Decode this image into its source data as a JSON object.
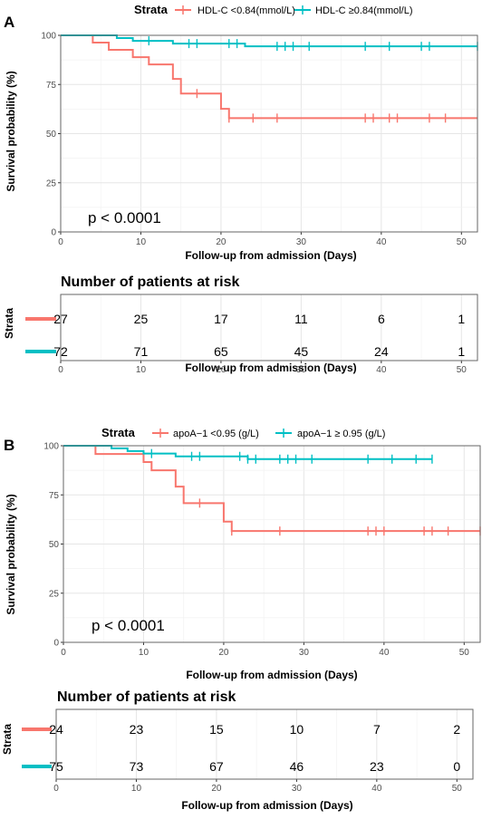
{
  "colors": {
    "red": "#F8766D",
    "teal": "#00BFC4"
  },
  "chart_data": [
    {
      "type": "line",
      "panel_label": "A",
      "legend_title": "Strata",
      "xlabel": "Follow-up from admission (Days)",
      "ylabel": "Survival probability (%)",
      "xlim": [
        0,
        52
      ],
      "ylim": [
        0,
        100
      ],
      "xticks": [
        0,
        10,
        20,
        30,
        40,
        50
      ],
      "yticks": [
        0,
        25,
        50,
        75,
        100
      ],
      "pvalue": "p < 0.0001",
      "series": [
        {
          "name": "HDL-C <0.84(mmol/L)",
          "color": "#F8766D",
          "x": [
            0,
            4,
            6,
            9,
            11,
            14,
            15,
            20,
            21,
            52
          ],
          "y": [
            100,
            96.3,
            92.6,
            88.9,
            85.2,
            77.8,
            70.4,
            62.6,
            57.9,
            57.9
          ],
          "censor_x": [
            17,
            21,
            24,
            27,
            38,
            39,
            41,
            42,
            46,
            48
          ],
          "censor_y": [
            70.4,
            57.9,
            57.9,
            57.9,
            57.9,
            57.9,
            57.9,
            57.9,
            57.9,
            57.9
          ]
        },
        {
          "name": "HDL-C ≥0.84(mmol/L)",
          "color": "#00BFC4",
          "x": [
            0,
            7,
            9,
            14,
            23,
            52
          ],
          "y": [
            100,
            98.6,
            97.2,
            95.8,
            94.4,
            94.4
          ],
          "censor_x": [
            11,
            16,
            17,
            21,
            22,
            27,
            28,
            29,
            31,
            38,
            41,
            45,
            46,
            52
          ],
          "censor_y": [
            97.2,
            95.8,
            95.8,
            95.8,
            95.8,
            94.4,
            94.4,
            94.4,
            94.4,
            94.4,
            94.4,
            94.4,
            94.4,
            94.4
          ]
        }
      ]
    },
    {
      "type": "table",
      "title": "Number of patients at risk",
      "ylabel": "Strata",
      "xlabel": "Follow-up from admission (Days)",
      "xlim": [
        0,
        52
      ],
      "xticks": [
        0,
        10,
        20,
        30,
        40,
        50
      ],
      "rows": [
        {
          "color": "#F8766D",
          "values": [
            27,
            25,
            17,
            11,
            6,
            1
          ]
        },
        {
          "color": "#00BFC4",
          "values": [
            72,
            71,
            65,
            45,
            24,
            1
          ]
        }
      ]
    },
    {
      "type": "line",
      "panel_label": "B",
      "legend_title": "Strata",
      "xlabel": "Follow-up from admission (Days)",
      "ylabel": "Survival probability (%)",
      "xlim": [
        0,
        52
      ],
      "ylim": [
        0,
        100
      ],
      "xticks": [
        0,
        10,
        20,
        30,
        40,
        50
      ],
      "yticks": [
        0,
        25,
        50,
        75,
        100
      ],
      "pvalue": "p < 0.0001",
      "series": [
        {
          "name": "apoA−1 <0.95 (g/L)",
          "color": "#F8766D",
          "x": [
            0,
            4,
            10,
            11,
            13,
            14,
            15,
            20,
            21,
            52
          ],
          "y": [
            100,
            95.8,
            91.7,
            87.5,
            87.5,
            79.2,
            70.8,
            61.4,
            56.6,
            56.6
          ],
          "censor_x": [
            17,
            21,
            27,
            38,
            39,
            40,
            45,
            46,
            48,
            52
          ],
          "censor_y": [
            70.8,
            56.6,
            56.6,
            56.6,
            56.6,
            56.6,
            56.6,
            56.6,
            56.6,
            56.6
          ]
        },
        {
          "name": "apoA−1 ≥ 0.95 (g/L)",
          "color": "#00BFC4",
          "x": [
            0,
            6,
            8,
            10,
            14,
            23,
            46
          ],
          "y": [
            100,
            98.7,
            97.3,
            96.0,
            94.6,
            93.2,
            93.2
          ],
          "censor_x": [
            11,
            16,
            17,
            22,
            23,
            24,
            27,
            28,
            29,
            31,
            38,
            41,
            44,
            46
          ],
          "censor_y": [
            96.0,
            94.6,
            94.6,
            94.6,
            93.2,
            93.2,
            93.2,
            93.2,
            93.2,
            93.2,
            93.2,
            93.2,
            93.2,
            93.2
          ]
        }
      ]
    },
    {
      "type": "table",
      "title": "Number of patients at risk",
      "ylabel": "Strata",
      "xlabel": "Follow-up from admission (Days)",
      "xlim": [
        0,
        52
      ],
      "xticks": [
        0,
        10,
        20,
        30,
        40,
        50
      ],
      "rows": [
        {
          "color": "#F8766D",
          "values": [
            24,
            23,
            15,
            10,
            7,
            2
          ]
        },
        {
          "color": "#00BFC4",
          "values": [
            75,
            73,
            67,
            46,
            23,
            0
          ]
        }
      ]
    }
  ]
}
